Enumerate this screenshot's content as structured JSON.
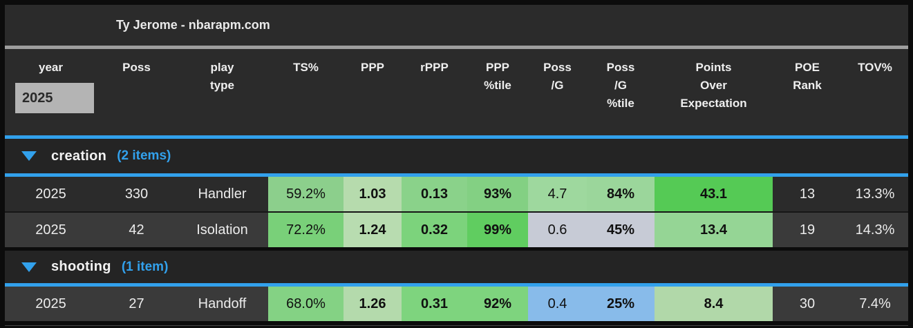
{
  "title": "Ty Jerome - nbarapm.com",
  "columns": [
    "year",
    "Poss",
    "play\ntype",
    "TS%",
    "PPP",
    "rPPP",
    "PPP\n%tile",
    "Poss\n/G",
    "Poss\n/G\n%tile",
    "Points\nOver\nExpectation",
    "POE\nRank",
    "TOV%"
  ],
  "year_filter": {
    "value": "2025"
  },
  "colors": {
    "accent_blue": "#32a1ec",
    "divider_gray": "#9e9e9e",
    "filter_bg": "#b4b4b4",
    "row_dark": "#2b2b2b",
    "row_light": "#3a3a3a"
  },
  "groups": [
    {
      "name": "creation",
      "count_label": "(2 items)",
      "collapse_icon": "triangle-down-icon",
      "rows": [
        {
          "bg": "#2b2b2b",
          "cells": [
            {
              "text": "2025"
            },
            {
              "text": "330"
            },
            {
              "text": "Handler"
            },
            {
              "text": "59.2%",
              "bg": "#8ccf8c"
            },
            {
              "text": "1.03",
              "bg": "#b6dbad",
              "bold": true
            },
            {
              "text": "0.13",
              "bg": "#8ad28a",
              "bold": true
            },
            {
              "text": "93%",
              "bg": "#83d083",
              "bold": true
            },
            {
              "text": "4.7",
              "bg": "#9ed89e"
            },
            {
              "text": "84%",
              "bg": "#9bd69b",
              "bold": true
            },
            {
              "text": "43.1",
              "bg": "#55ca55",
              "bold": true
            },
            {
              "text": "13"
            },
            {
              "text": "13.3%"
            }
          ]
        },
        {
          "bg": "#3a3a3a",
          "cells": [
            {
              "text": "2025"
            },
            {
              "text": "42"
            },
            {
              "text": "Isolation"
            },
            {
              "text": "72.2%",
              "bg": "#79d079"
            },
            {
              "text": "1.24",
              "bg": "#b8dcb0",
              "bold": true
            },
            {
              "text": "0.32",
              "bg": "#7cd37c",
              "bold": true
            },
            {
              "text": "99%",
              "bg": "#60cd60",
              "bold": true
            },
            {
              "text": "0.6",
              "bg": "#c7cbd6"
            },
            {
              "text": "45%",
              "bg": "#c7cbd6",
              "bold": true
            },
            {
              "text": "13.4",
              "bg": "#95d595",
              "bold": true
            },
            {
              "text": "19"
            },
            {
              "text": "14.3%"
            }
          ]
        }
      ]
    },
    {
      "name": "shooting",
      "count_label": "(1 item)",
      "collapse_icon": "triangle-down-icon",
      "rows": [
        {
          "bg": "#3a3a3a",
          "cells": [
            {
              "text": "2025"
            },
            {
              "text": "27"
            },
            {
              "text": "Handoff"
            },
            {
              "text": "68.0%",
              "bg": "#84d284"
            },
            {
              "text": "1.26",
              "bg": "#b4daac",
              "bold": true
            },
            {
              "text": "0.31",
              "bg": "#7ed47e",
              "bold": true
            },
            {
              "text": "92%",
              "bg": "#7ed47e",
              "bold": true
            },
            {
              "text": "0.4",
              "bg": "#88bbea"
            },
            {
              "text": "25%",
              "bg": "#88bbea",
              "bold": true
            },
            {
              "text": "8.4",
              "bg": "#b1d8a9",
              "bold": true
            },
            {
              "text": "30"
            },
            {
              "text": "7.4%"
            }
          ]
        }
      ]
    }
  ]
}
